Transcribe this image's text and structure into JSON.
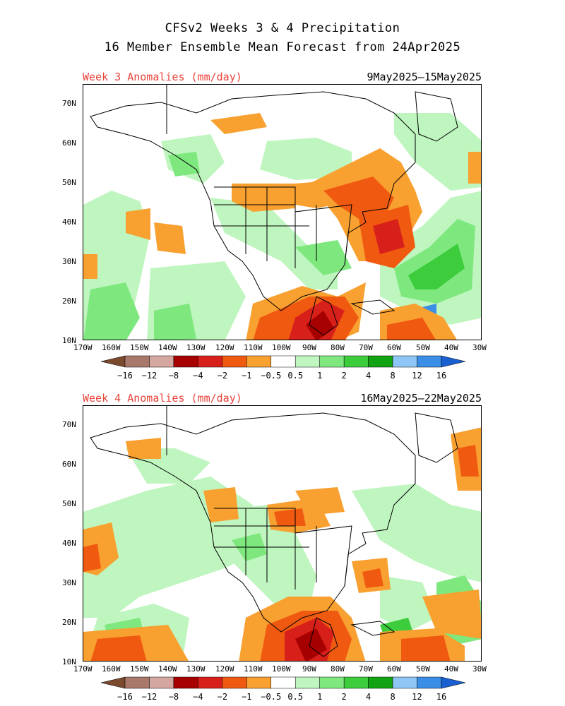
{
  "title": {
    "line1": "CFSv2 Weeks 3 & 4 Precipitation",
    "line2": "16 Member Ensemble Mean Forecast from 24Apr2025"
  },
  "panels": [
    {
      "label": "Week 3 Anomalies (mm/day)",
      "dates": "9May2025–15May2025"
    },
    {
      "label": "Week 4 Anomalies (mm/day)",
      "dates": "16May2025–22May2025"
    }
  ],
  "axes": {
    "lon_labels": [
      "170W",
      "160W",
      "150W",
      "140W",
      "130W",
      "120W",
      "110W",
      "100W",
      "90W",
      "80W",
      "70W",
      "60W",
      "50W",
      "40W",
      "30W"
    ],
    "lat_labels": [
      "70N",
      "60N",
      "50N",
      "40N",
      "30N",
      "20N",
      "10N"
    ]
  },
  "colorbar": {
    "labels": [
      "−16",
      "−12",
      "−8",
      "−4",
      "−2",
      "−1",
      "−0.5",
      "0.5",
      "1",
      "2",
      "4",
      "8",
      "12",
      "16"
    ],
    "colors": [
      "#7a4a2f",
      "#a8786a",
      "#d4a8a0",
      "#a60000",
      "#d8201a",
      "#f05a10",
      "#f8a030",
      "#ffffff",
      "#bff5bf",
      "#7ee87e",
      "#3ccc3c",
      "#11a311",
      "#8ec7f5",
      "#3a8ee6",
      "#1a5fd0"
    ],
    "accent_red": "#e8433a"
  }
}
